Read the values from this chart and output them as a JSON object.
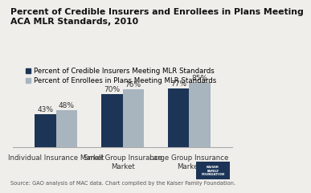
{
  "title": "Percent of Credible Insurers and Enrollees in Plans Meeting\nACA MLR Standards, 2010",
  "categories": [
    "Individual Insurance Market",
    "Small Group Insurance\nMarket",
    "Large Group Insurance\nMarket"
  ],
  "series1_label": "Percent of Credible Insurers Meeting MLR Standards",
  "series2_label": "Percent of Enrollees in Plans Meeting MLR Standards",
  "series1_values": [
    43,
    70,
    77
  ],
  "series2_values": [
    48,
    76,
    85
  ],
  "color1": "#1c3557",
  "color2": "#a8b4be",
  "ylim": [
    0,
    100
  ],
  "source_text": "Source: GAO analysis of MAC data. Chart compiled by the Kaiser Family Foundation.",
  "bar_width": 0.32,
  "title_fontsize": 7.8,
  "legend_fontsize": 6.2,
  "tick_fontsize": 6.2,
  "source_fontsize": 4.8,
  "label_fontsize": 6.5,
  "background_color": "#f0eeeb"
}
